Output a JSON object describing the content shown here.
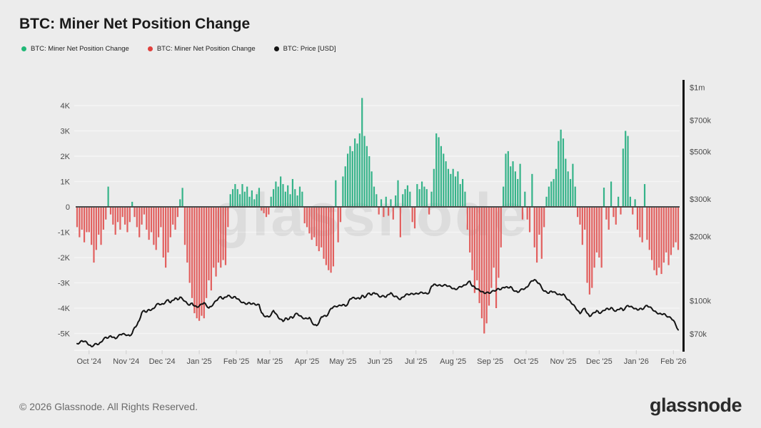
{
  "page": {
    "background": "#ececec"
  },
  "header": {
    "title": "BTC: Miner Net Position Change"
  },
  "legend": [
    {
      "label": "BTC: Miner Net Position Change",
      "color": "#21b877"
    },
    {
      "label": "BTC: Miner Net Position Change",
      "color": "#e0403d"
    },
    {
      "label": "BTC: Price [USD]",
      "color": "#141414"
    }
  ],
  "watermark": "glassnode",
  "footer": {
    "copyright": "© 2026 Glassnode. All Rights Reserved.",
    "brand": "glassnode"
  },
  "chart_data": {
    "type": "bar+line",
    "title": "BTC: Miner Net Position Change",
    "start_date": "2024-09-21",
    "step_days": 2,
    "grid": true,
    "legend_position": "top-left",
    "colors": {
      "bar_positive": "#35b389",
      "bar_negative": "#e25f5e",
      "price_line": "#141414",
      "grid_line": "#f5f5f5",
      "zero_line": "#4a4a4a",
      "axis_spine": "#141414",
      "tick_text": "#4a4a4a",
      "watermark": "#1a1a1a"
    },
    "left_axis": {
      "title": "Miner Net Position Change [BTC]",
      "tick_labels": [
        "4K",
        "3K",
        "2K",
        "1K",
        "0",
        "-1K",
        "-2K",
        "-3K",
        "-4K",
        "-5K"
      ],
      "tick_values": [
        4000,
        3000,
        2000,
        1000,
        0,
        -1000,
        -2000,
        -3000,
        -4000,
        -5000
      ],
      "range": [
        -5000,
        4000
      ]
    },
    "right_axis": {
      "title": "BTC: Price [USD]",
      "scale": "log",
      "tick_labels": [
        "$1m",
        "$700k",
        "$500k",
        "$300k",
        "$200k",
        "$100k",
        "$70k"
      ],
      "tick_values_k": [
        1000,
        700,
        500,
        300,
        200,
        100,
        70
      ]
    },
    "x_axis": {
      "tick_labels": [
        "Oct '24",
        "Nov '24",
        "Dec '24",
        "Jan '25",
        "Feb '25",
        "Mar '25",
        "Apr '25",
        "May '25",
        "Jun '25",
        "Jul '25",
        "Aug '25",
        "Sep '25",
        "Oct '25",
        "Nov '25",
        "Dec '25",
        "Jan '26",
        "Feb '26"
      ],
      "tick_day_offsets": [
        10,
        41,
        71,
        102,
        133,
        161,
        192,
        222,
        253,
        283,
        314,
        345,
        375,
        406,
        436,
        467,
        498
      ]
    },
    "series": [
      {
        "name": "BTC: Miner Net Position Change",
        "type": "bar",
        "unit": "BTC",
        "values": [
          -800,
          -1200,
          -900,
          -1400,
          -1000,
          -1000,
          -1500,
          -2200,
          -1700,
          -1100,
          -1500,
          -900,
          -500,
          800,
          -300,
          -700,
          -1100,
          -600,
          -900,
          -400,
          -700,
          -1000,
          -600,
          200,
          -400,
          -800,
          -1200,
          -700,
          -300,
          -900,
          -1300,
          -1000,
          -1500,
          -1700,
          -1200,
          -800,
          -2000,
          -2400,
          -1800,
          -1200,
          -700,
          -900,
          -400,
          300,
          750,
          -1500,
          -2200,
          -3000,
          -3600,
          -4200,
          -4400,
          -4500,
          -4300,
          -4400,
          -3600,
          -2900,
          -3300,
          -2400,
          -2750,
          -2200,
          -2400,
          -2100,
          -2300,
          -800,
          500,
          700,
          900,
          700,
          500,
          900,
          600,
          800,
          400,
          650,
          300,
          500,
          750,
          -150,
          -250,
          -400,
          -300,
          400,
          700,
          1000,
          800,
          1200,
          900,
          600,
          850,
          500,
          1100,
          700,
          450,
          800,
          600,
          -650,
          -800,
          -1050,
          -1300,
          -1200,
          -1550,
          -1750,
          -1600,
          -2050,
          -2300,
          -2500,
          -2600,
          -2350,
          1050,
          -1400,
          -600,
          1200,
          1600,
          2100,
          2400,
          2200,
          2700,
          2500,
          2900,
          4300,
          2800,
          2400,
          2000,
          1400,
          800,
          500,
          -300,
          300,
          -400,
          400,
          -350,
          300,
          -500,
          450,
          1050,
          -1200,
          500,
          700,
          850,
          600,
          -600,
          -850,
          900,
          700,
          1000,
          800,
          700,
          -300,
          600,
          1500,
          2900,
          2750,
          2400,
          2100,
          1800,
          1500,
          1300,
          1500,
          1200,
          1400,
          900,
          1100,
          600,
          -900,
          -1800,
          -2500,
          -3400,
          -2900,
          -3800,
          -4400,
          -5000,
          -4600,
          -3900,
          -3200,
          -2400,
          -4000,
          -2800,
          -1600,
          800,
          2100,
          2200,
          1600,
          1800,
          1400,
          1100,
          1700,
          -500,
          600,
          -500,
          -1000,
          1300,
          -1600,
          -2200,
          -1100,
          -2050,
          -800,
          400,
          800,
          1000,
          1100,
          1500,
          2600,
          3050,
          2700,
          1900,
          1400,
          1100,
          1700,
          800,
          -400,
          -700,
          -1500,
          -900,
          -3000,
          -3460,
          -3200,
          -2400,
          -1800,
          -2000,
          -2400,
          760,
          -500,
          -900,
          1000,
          -400,
          -700,
          400,
          -300,
          2300,
          3000,
          2800,
          400,
          -300,
          300,
          -900,
          -1200,
          -1400,
          900,
          -1300,
          -1700,
          -2100,
          -2500,
          -2700,
          -2400,
          -2650,
          -2200,
          -1800,
          -2300,
          -1900,
          -1600,
          -1400,
          -1700
        ]
      },
      {
        "name": "BTC: Price [USD]",
        "type": "line",
        "unit": "USD (thousands)",
        "axis": "right",
        "values_k": [
          63,
          63.5,
          65,
          64.5,
          64,
          62,
          61,
          62,
          63,
          62.5,
          64,
          66,
          67.5,
          67,
          68.5,
          67.5,
          66.5,
          68,
          69.5,
          70,
          69.5,
          69,
          68.5,
          70.5,
          75,
          77,
          81,
          88,
          90,
          88.5,
          91,
          90.5,
          92,
          95.5,
          97,
          96,
          96.5,
          99,
          101,
          98,
          100.5,
          103,
          101,
          104,
          102,
          99.5,
          97,
          95.5,
          97.5,
          94.5,
          93.5,
          94.5,
          96.5,
          98,
          95,
          92.5,
          94,
          97,
          100,
          102.5,
          104.5,
          102,
          104,
          106,
          104.5,
          103,
          104.5,
          102,
          100,
          98,
          97.5,
          96.5,
          98,
          96.5,
          97,
          95.5,
          96,
          88,
          85,
          84.5,
          84,
          86,
          90,
          87,
          83.5,
          82,
          80,
          83,
          81.5,
          84,
          83,
          86.5,
          87,
          85,
          83.5,
          82.5,
          82.5,
          83.5,
          79.5,
          77,
          76.5,
          79,
          84,
          85,
          84.5,
          87.5,
          92,
          93.5,
          94,
          94.5,
          95,
          96,
          94.5,
          96.5,
          102,
          103.5,
          102.5,
          103,
          102,
          106,
          103.5,
          106.5,
          108.5,
          106.5,
          109,
          108,
          105,
          104.5,
          105.5,
          104,
          107,
          109,
          105.5,
          105,
          103,
          101.5,
          104,
          106,
          107.5,
          107,
          108,
          107.5,
          108,
          108.5,
          109.5,
          108.5,
          108,
          109,
          117,
          119.5,
          118,
          118.5,
          117.5,
          118,
          118.5,
          117,
          116,
          114,
          113,
          114.5,
          116.5,
          117,
          118.5,
          121,
          123.5,
          117,
          116,
          113.5,
          112,
          110.5,
          108.5,
          109.5,
          108.5,
          110,
          111.5,
          112,
          114,
          113,
          115.5,
          116,
          115,
          116.5,
          112.5,
          111,
          109.5,
          112,
          113.5,
          114,
          116,
          121,
          124,
          125.6,
          122.5,
          120.5,
          115,
          111,
          110,
          108.5,
          111,
          110,
          108.5,
          107,
          106.5,
          107.5,
          104,
          101,
          99,
          96,
          93.5,
          90,
          87,
          90.5,
          92,
          87.5,
          84.5,
          86.5,
          88,
          90,
          87.5,
          88.5,
          90,
          92,
          91,
          93,
          90.5,
          89.5,
          91,
          92.5,
          90,
          93,
          95,
          94,
          93,
          92,
          90.5,
          92,
          91,
          93.5,
          95,
          93.5,
          92,
          89.5,
          88,
          87,
          86.5,
          87,
          85,
          84,
          83,
          81,
          77,
          73
        ]
      }
    ]
  }
}
